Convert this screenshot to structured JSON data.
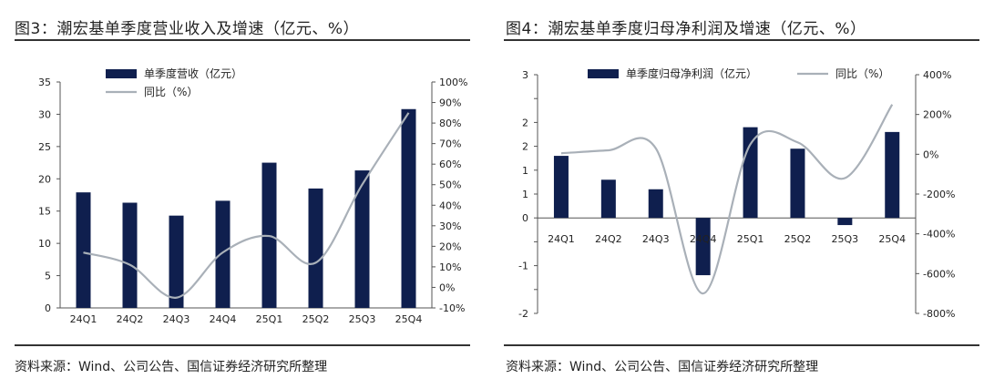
{
  "colors": {
    "bar": "#0f1f4e",
    "line": "#a9b0b8",
    "axis": "#555555"
  },
  "chart_data": [
    {
      "type": "bar+line",
      "title": "图3：潮宏基单季度营业收入及增速（亿元、%）",
      "source": "资料来源：Wind、公司公告、国信证券经济研究所整理",
      "categories": [
        "24Q1",
        "24Q2",
        "24Q3",
        "24Q4",
        "25Q1",
        "25Q2",
        "25Q3",
        "25Q4"
      ],
      "series": [
        {
          "name": "单季度营收（亿元）",
          "kind": "bar",
          "axis": "left",
          "values": [
            17.9,
            16.3,
            14.3,
            16.6,
            22.5,
            18.5,
            21.3,
            30.8
          ]
        },
        {
          "name": "同比（%）",
          "kind": "line",
          "axis": "right",
          "values": [
            17,
            11,
            -5,
            17,
            25,
            12,
            50,
            85
          ]
        }
      ],
      "y_left": {
        "min": 0,
        "max": 35,
        "step": 5,
        "ticks": [
          "0",
          "5",
          "10",
          "15",
          "20",
          "25",
          "30",
          "35"
        ]
      },
      "y_right": {
        "min": -10,
        "max": 100,
        "step": 10,
        "ticks": [
          "-10%",
          "0%",
          "10%",
          "20%",
          "30%",
          "40%",
          "50%",
          "60%",
          "70%",
          "80%",
          "90%",
          "100%"
        ]
      },
      "legend": "top-left"
    },
    {
      "type": "bar+line",
      "title": "图4：潮宏基单季度归母净利润及增速（亿元、%）",
      "source": "资料来源：Wind、公司公告、国信证券经济研究所整理",
      "categories": [
        "24Q1",
        "24Q2",
        "24Q3",
        "24Q4",
        "25Q1",
        "25Q2",
        "25Q3",
        "25Q4"
      ],
      "series": [
        {
          "name": "单季度归母净利润（亿元）",
          "kind": "bar",
          "axis": "left",
          "values": [
            1.3,
            0.8,
            0.6,
            -1.2,
            1.9,
            1.45,
            -0.15,
            1.8
          ]
        },
        {
          "name": "同比（%）",
          "kind": "line",
          "axis": "right",
          "values": [
            5,
            20,
            30,
            -700,
            50,
            60,
            -120,
            250
          ]
        }
      ],
      "y_left": {
        "min": -2,
        "max": 3,
        "step": 0.5,
        "ticks": [
          "-2",
          "",
          "-1",
          "",
          "0",
          "1",
          "1",
          "2",
          "2",
          "",
          "3"
        ]
      },
      "y_right": {
        "min": -800,
        "max": 400,
        "step": 200,
        "ticks": [
          "-800%",
          "-600%",
          "-400%",
          "-200%",
          "0%",
          "200%",
          "400%"
        ]
      },
      "legend": "top"
    }
  ]
}
